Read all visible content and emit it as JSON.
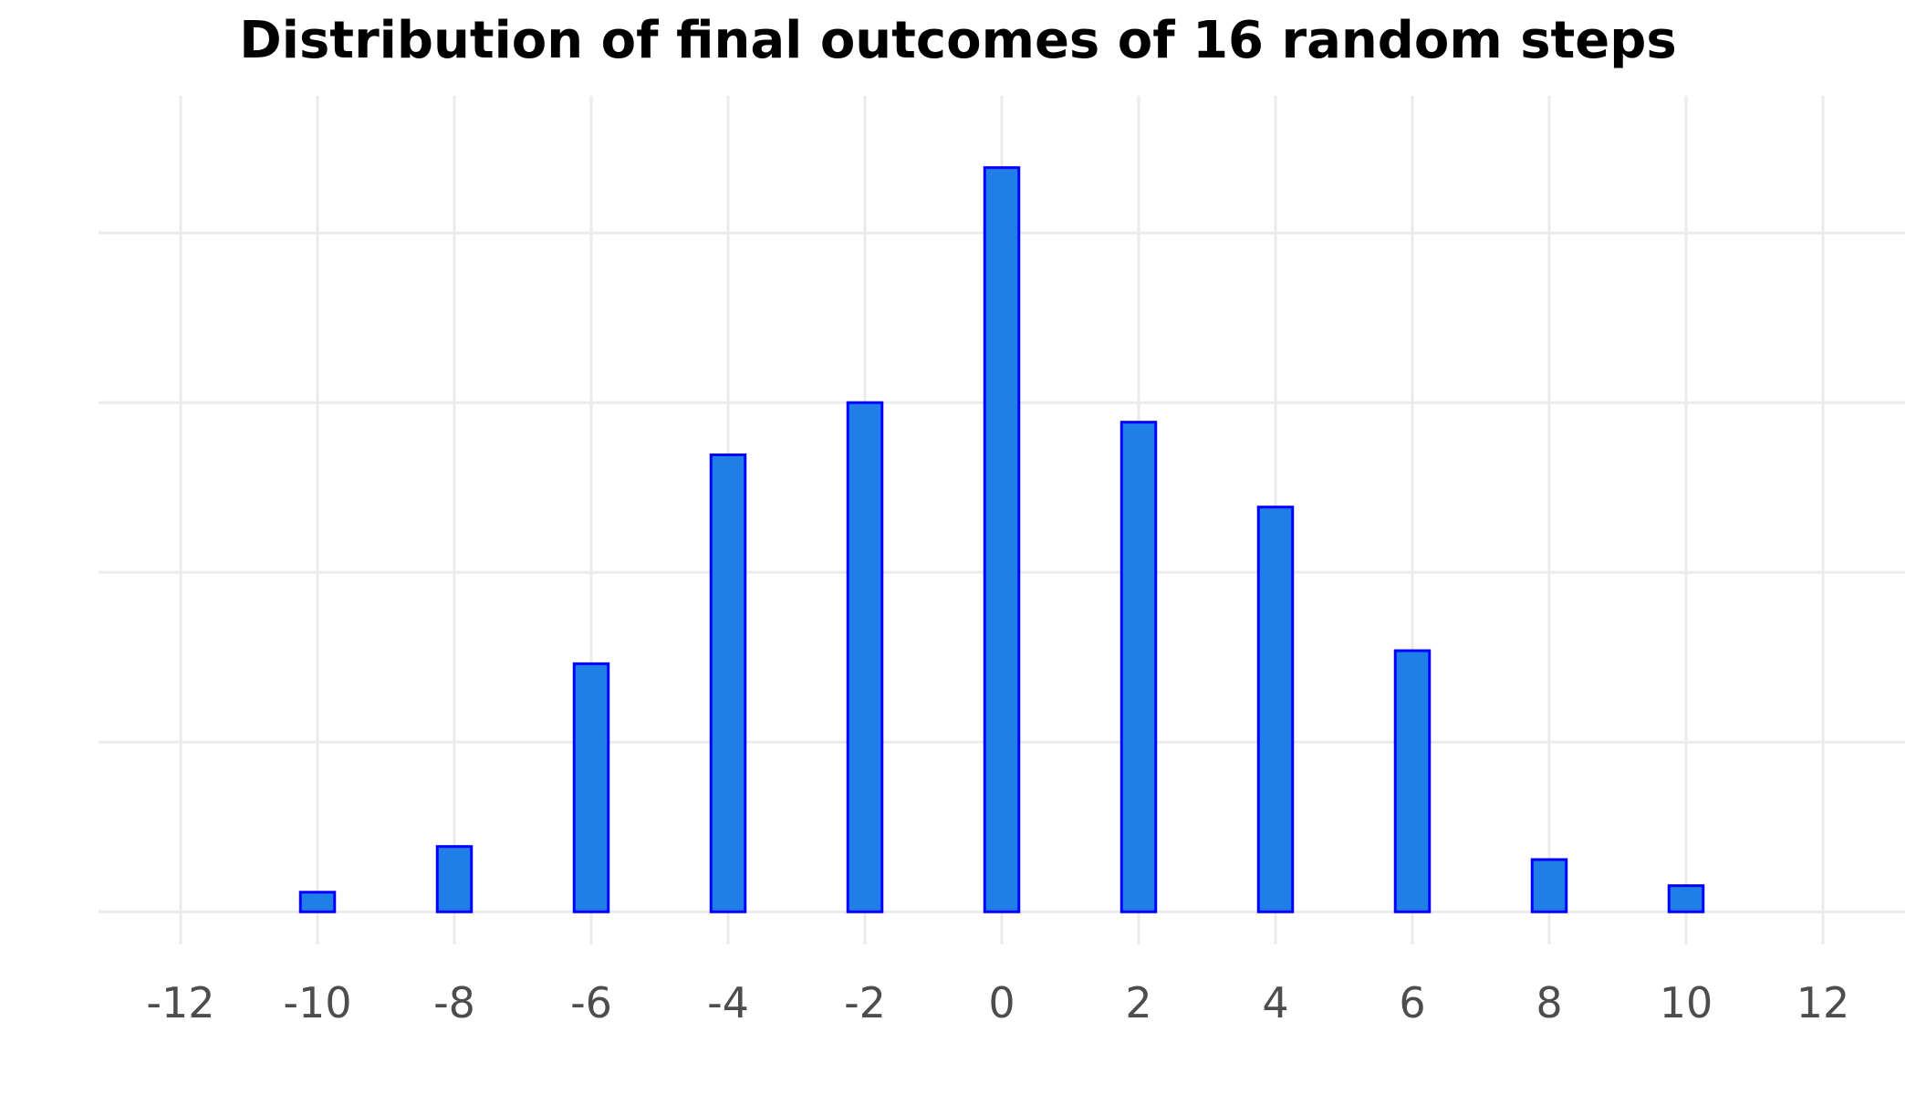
{
  "chart_data": {
    "type": "bar",
    "title": "Distribution of final outcomes of 16 random steps",
    "xlabel": "",
    "ylabel": "",
    "x": [
      -10,
      -8,
      -6,
      -4,
      -2,
      0,
      2,
      4,
      6,
      8,
      10
    ],
    "values": [
      3,
      10,
      38,
      70,
      78,
      114,
      75,
      62,
      40,
      8,
      4
    ],
    "xlim": [
      -13.2,
      13.2
    ],
    "ylim": [
      -5,
      125
    ],
    "x_ticks": [
      -12,
      -10,
      -8,
      -6,
      -4,
      -2,
      0,
      2,
      4,
      6,
      8,
      10,
      12
    ],
    "x_tick_labels": [
      "-12",
      "-10",
      "-8",
      "-6",
      "-4",
      "-2",
      "0",
      "2",
      "4",
      "6",
      "8",
      "10",
      "12"
    ],
    "y_gridlines": [
      0,
      26,
      52,
      78,
      104
    ],
    "y_tick_labels_shown": false,
    "grid": true,
    "legend": "none",
    "colors": {
      "bar_fill": "#1f7fe6",
      "bar_stroke": "#0000ff",
      "grid": "#ebebeb",
      "tick_text": "#4d4d4d",
      "title_text": "#000000"
    }
  }
}
